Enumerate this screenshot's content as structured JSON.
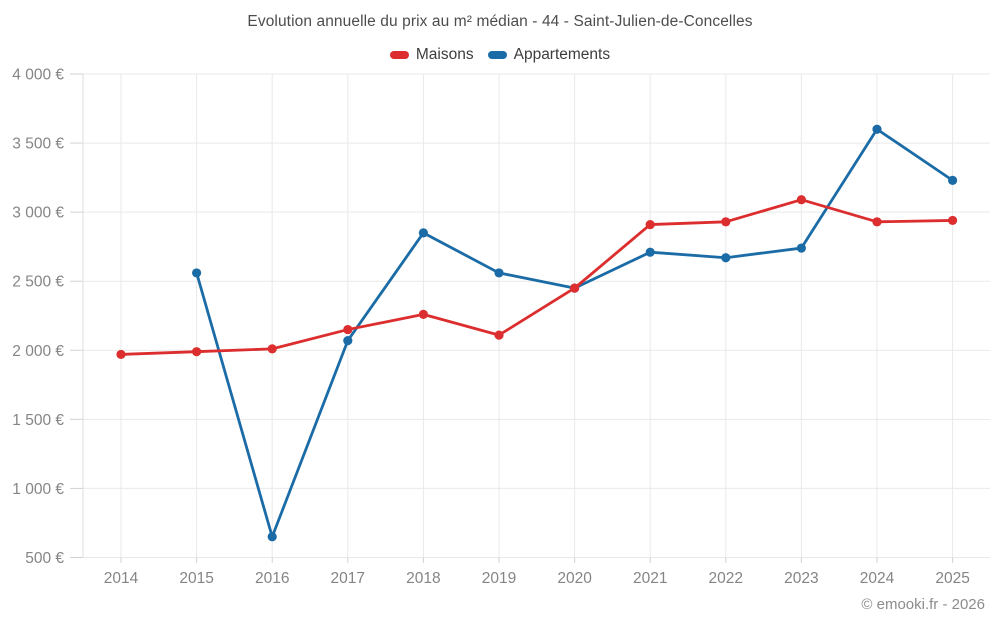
{
  "page": {
    "title": "Evolution annuelle du prix au m² médian - 44 - Saint-Julien-de-Concelles",
    "watermark": "© emooki.fr - 2026"
  },
  "legend": {
    "items": [
      {
        "label": "Maisons",
        "color": "#dc2e2e"
      },
      {
        "label": "Appartements",
        "color": "#1b6ca6"
      }
    ]
  },
  "chart_data": {
    "type": "line",
    "title": "Evolution annuelle du prix au m² médian - 44 - Saint-Julien-de-Concelles",
    "categories": [
      "2014",
      "2015",
      "2016",
      "2017",
      "2018",
      "2019",
      "2020",
      "2021",
      "2022",
      "2023",
      "2024",
      "2025"
    ],
    "series": [
      {
        "name": "Maisons",
        "color": "#dc2e2e",
        "values": [
          1970,
          1990,
          2010,
          2150,
          2260,
          2110,
          2450,
          2910,
          2930,
          3090,
          2930,
          2940
        ]
      },
      {
        "name": "Appartements",
        "color": "#1b6ca6",
        "values": [
          null,
          2560,
          650,
          2070,
          2850,
          2560,
          2450,
          2710,
          2670,
          2740,
          3600,
          3230
        ]
      }
    ],
    "unit": "€",
    "ylim": [
      500,
      4000
    ],
    "yticks": [
      {
        "value": 500,
        "label": "500 €"
      },
      {
        "value": 1000,
        "label": "1 000 €"
      },
      {
        "value": 1500,
        "label": "1 500 €"
      },
      {
        "value": 2000,
        "label": "2 000 €"
      },
      {
        "value": 2500,
        "label": "2 500 €"
      },
      {
        "value": 3000,
        "label": "3 000 €"
      },
      {
        "value": 3500,
        "label": "3 500 €"
      },
      {
        "value": 4000,
        "label": "4 000 €"
      }
    ],
    "grid": true,
    "legend_position": "top",
    "annotations": [
      "© emooki.fr - 2026"
    ]
  }
}
